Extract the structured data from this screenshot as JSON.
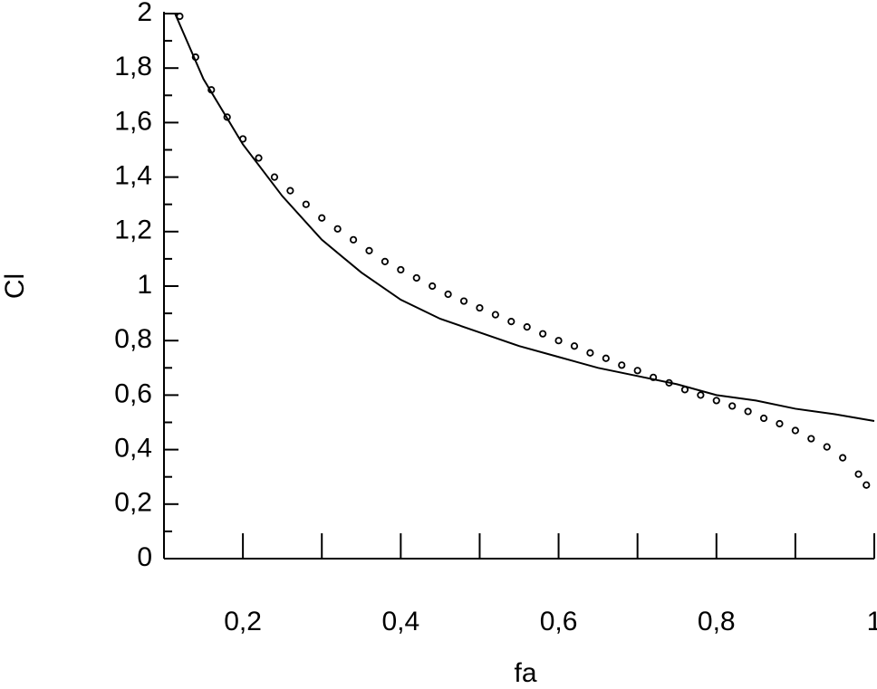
{
  "chart_data": {
    "type": "line",
    "x_label": "fa",
    "y_label": "Cl",
    "xlim": [
      0.1,
      1
    ],
    "ylim": [
      0,
      2
    ],
    "xticks": [
      {
        "value": 0.2,
        "label": "0,2"
      },
      {
        "value": 0.4,
        "label": "0,4"
      },
      {
        "value": 0.6,
        "label": "0,6"
      },
      {
        "value": 0.8,
        "label": "0,8"
      },
      1
    ],
    "yticks": [
      0,
      {
        "value": 0.2,
        "label": "0,2"
      },
      {
        "value": 0.4,
        "label": "0,4"
      },
      {
        "value": 0.6,
        "label": "0,6"
      },
      {
        "value": 0.8,
        "label": "0,8"
      },
      1,
      {
        "value": 1.2,
        "label": "1,2"
      },
      {
        "value": 1.4,
        "label": "1,4"
      },
      {
        "value": 1.6,
        "label": "1,6"
      },
      {
        "value": 1.8,
        "label": "1,8"
      },
      2
    ],
    "series": [
      {
        "marker": "circle",
        "color": "#000000",
        "x": [
          0.12,
          0.14,
          0.16,
          0.18,
          0.2,
          0.22,
          0.24,
          0.26,
          0.28,
          0.3,
          0.32,
          0.34,
          0.36,
          0.38,
          0.4,
          0.42,
          0.44,
          0.46,
          0.48,
          0.5,
          0.52,
          0.54,
          0.56,
          0.58,
          0.6,
          0.62,
          0.64,
          0.66,
          0.68,
          0.7,
          0.72,
          0.74,
          0.76,
          0.78,
          0.8,
          0.82,
          0.84,
          0.86,
          0.88,
          0.9,
          0.92,
          0.94,
          0.96,
          0.98,
          0.99
        ],
        "values": [
          1.99,
          1.84,
          1.72,
          1.62,
          1.54,
          1.47,
          1.4,
          1.35,
          1.3,
          1.25,
          1.21,
          1.17,
          1.13,
          1.09,
          1.06,
          1.03,
          1.0,
          0.97,
          0.945,
          0.92,
          0.895,
          0.87,
          0.85,
          0.825,
          0.8,
          0.78,
          0.755,
          0.735,
          0.71,
          0.69,
          0.665,
          0.645,
          0.62,
          0.6,
          0.58,
          0.56,
          0.54,
          0.515,
          0.495,
          0.47,
          0.44,
          0.41,
          0.37,
          0.31,
          0.27
        ]
      },
      {
        "marker": "none",
        "color": "#000000",
        "x": [
          0.114,
          0.15,
          0.2,
          0.25,
          0.3,
          0.35,
          0.4,
          0.45,
          0.5,
          0.55,
          0.6,
          0.65,
          0.7,
          0.75,
          0.8,
          0.85,
          0.9,
          0.95,
          1.0
        ],
        "values": [
          2.0,
          1.76,
          1.52,
          1.33,
          1.17,
          1.05,
          0.95,
          0.88,
          0.83,
          0.78,
          0.74,
          0.7,
          0.67,
          0.64,
          0.6,
          0.58,
          0.55,
          0.53,
          0.505
        ]
      }
    ]
  }
}
